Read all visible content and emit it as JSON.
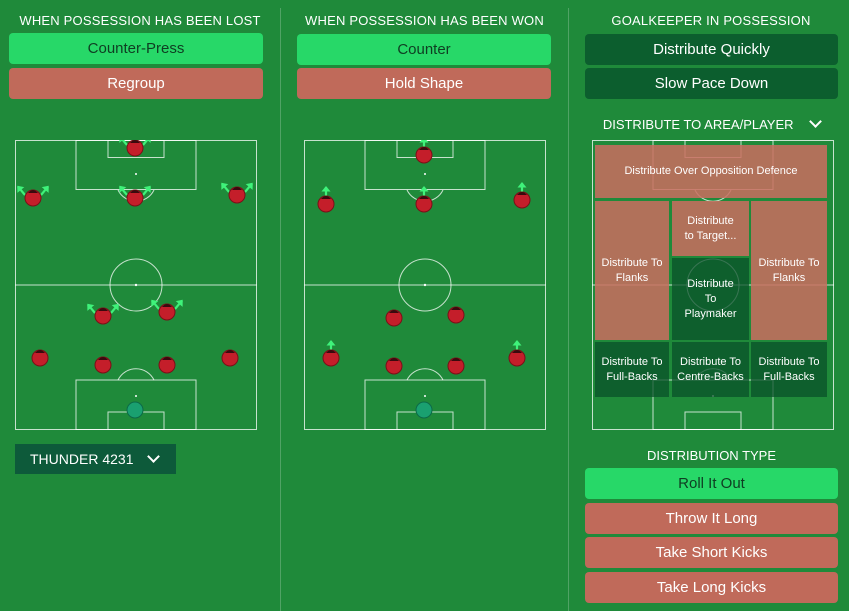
{
  "columns": {
    "lost": {
      "title": "WHEN POSSESSION HAS BEEN LOST",
      "buttons": [
        "Counter-Press",
        "Regroup"
      ],
      "formation": "THUNDER 4231"
    },
    "won": {
      "title": "WHEN POSSESSION HAS BEEN WON",
      "buttons": [
        "Counter",
        "Hold Shape"
      ]
    },
    "gk": {
      "title": "GOALKEEPER IN POSSESSION",
      "buttons": [
        "Distribute Quickly",
        "Slow Pace Down"
      ],
      "distribute_title": "DISTRIBUTE TO AREA/PLAYER",
      "zones": {
        "opposition_defence": "Distribute Over Opposition Defence",
        "target": "Distribute to Target...",
        "flanks_left": "Distribute To Flanks",
        "flanks_right": "Distribute To Flanks",
        "playmaker": "Distribute To Playmaker",
        "fullbacks_left": "Distribute To Full-Backs",
        "centre_backs": "Distribute To Centre-Backs",
        "fullbacks_right": "Distribute To Full-Backs"
      },
      "distribution_type_title": "DISTRIBUTION TYPE",
      "distribution_types": [
        "Roll It Out",
        "Throw It Long",
        "Take Short Kicks",
        "Take Long Kicks"
      ]
    }
  },
  "colors": {
    "background": "#1f8a3a",
    "selected": "#27d868",
    "unselected_bad": "#c06a5a",
    "dark_option": "#0c5e2e",
    "player": "#c41e2a",
    "goalkeeper": "#1aa070",
    "arrow": "#3ff27a"
  },
  "icons": {
    "formation_dropdown": "chevron-down-icon",
    "distribute_dropdown": "chevron-down-icon"
  }
}
